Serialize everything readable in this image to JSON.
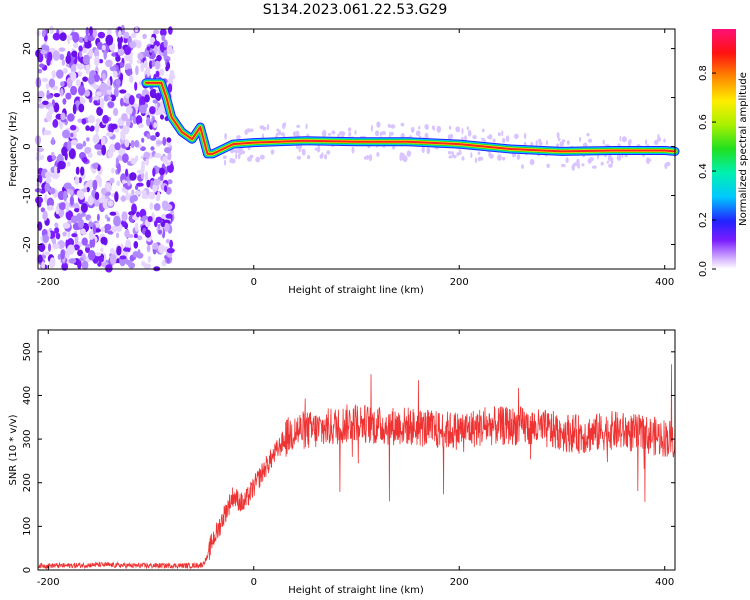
{
  "title": "S134.2023.061.22.53.G29",
  "chart_data": [
    {
      "type": "heatmap",
      "title": "",
      "xlabel": "Height of straight line (km)",
      "ylabel": "Frequency (Hz)",
      "xlim": [
        -210,
        410
      ],
      "ylim": [
        -25,
        24
      ],
      "xticks": [
        -200,
        0,
        200,
        400
      ],
      "yticks": [
        -20,
        -10,
        0,
        10,
        20
      ],
      "colorbar": {
        "label": "Normalized spectral amplitude",
        "ticks": [
          0.0,
          0.2,
          0.4,
          0.6,
          0.8
        ],
        "range": [
          0,
          0.98
        ]
      },
      "ridge": {
        "x": [
          -105,
          -90,
          -85,
          -80,
          -70,
          -60,
          -52,
          -45,
          -40,
          -30,
          -20,
          0,
          50,
          100,
          150,
          200,
          250,
          300,
          350,
          400,
          410
        ],
        "y": [
          13,
          13,
          10,
          6,
          3,
          1.5,
          4,
          -1.5,
          -1.5,
          -0.5,
          0.5,
          0.8,
          1.2,
          1,
          1,
          0.5,
          -0.5,
          -1,
          -0.8,
          -0.8,
          -1
        ]
      },
      "noise_region_x": [
        -210,
        -85
      ]
    },
    {
      "type": "line",
      "title": "",
      "xlabel": "Height of straight line (km)",
      "ylabel": "SNR (10 * v/v)",
      "xlim": [
        -210,
        410
      ],
      "ylim": [
        0,
        550
      ],
      "xticks": [
        -200,
        0,
        200,
        400
      ],
      "yticks": [
        0,
        100,
        200,
        300,
        400,
        500
      ],
      "color": "#ef3333",
      "x": [
        -210,
        -180,
        -150,
        -120,
        -90,
        -60,
        -50,
        -45,
        -40,
        -35,
        -30,
        -20,
        -10,
        0,
        10,
        20,
        30,
        40,
        60,
        80,
        100,
        120,
        150,
        180,
        200,
        230,
        260,
        290,
        320,
        350,
        380,
        410
      ],
      "y": [
        10,
        10,
        12,
        10,
        10,
        10,
        12,
        30,
        70,
        90,
        120,
        170,
        150,
        190,
        230,
        265,
        300,
        320,
        320,
        330,
        340,
        330,
        330,
        320,
        320,
        330,
        330,
        320,
        310,
        320,
        310,
        300
      ]
    }
  ]
}
